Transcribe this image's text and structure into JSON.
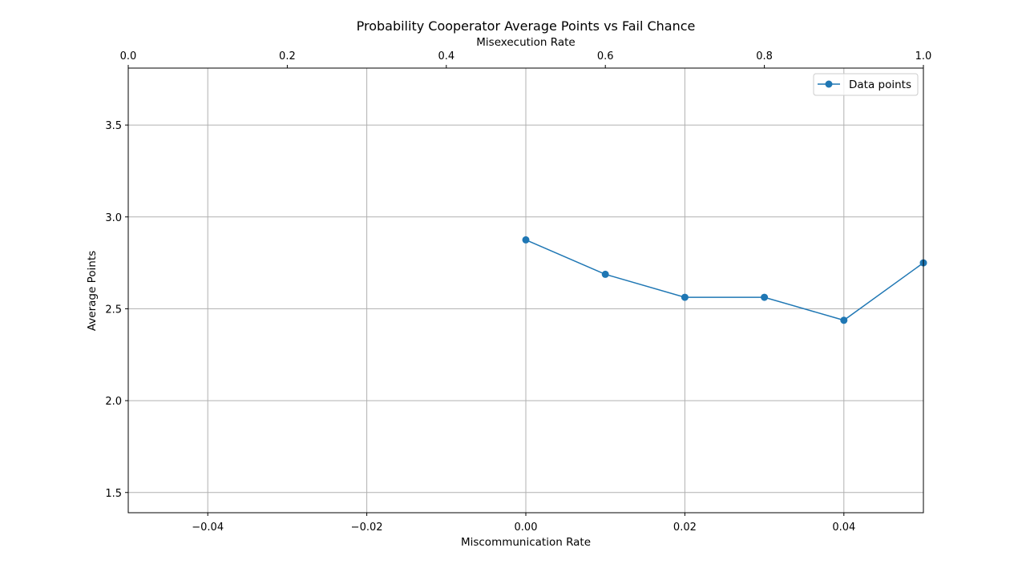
{
  "chart_data": {
    "type": "line",
    "title": "Probability Cooperator Average Points vs Fail Chance",
    "xlabel": "Miscommunication Rate",
    "ylabel": "Average Points",
    "top_xlabel": "Misexecution Rate",
    "xlim": [
      -0.05,
      0.05
    ],
    "ylim": [
      1.39,
      3.81
    ],
    "top_xlim": [
      0.0,
      1.0
    ],
    "x_ticks": [
      -0.04,
      -0.02,
      0.0,
      0.02,
      0.04
    ],
    "x_tick_labels": [
      "−0.04",
      "−0.02",
      "0.00",
      "0.02",
      "0.04"
    ],
    "y_ticks": [
      1.5,
      2.0,
      2.5,
      3.0,
      3.5
    ],
    "y_tick_labels": [
      "1.5",
      "2.0",
      "2.5",
      "3.0",
      "3.5"
    ],
    "top_x_ticks": [
      0.0,
      0.2,
      0.4,
      0.6,
      0.8,
      1.0
    ],
    "top_x_tick_labels": [
      "0.0",
      "0.2",
      "0.4",
      "0.6",
      "0.8",
      "1.0"
    ],
    "grid": true,
    "legend_position": "top-right",
    "series": [
      {
        "name": "Data points",
        "color": "#1f77b4",
        "x": [
          0.0,
          0.01,
          0.02,
          0.03,
          0.04,
          0.05
        ],
        "y": [
          2.875,
          2.6875,
          2.5625,
          2.5625,
          2.4375,
          2.75
        ]
      }
    ]
  }
}
